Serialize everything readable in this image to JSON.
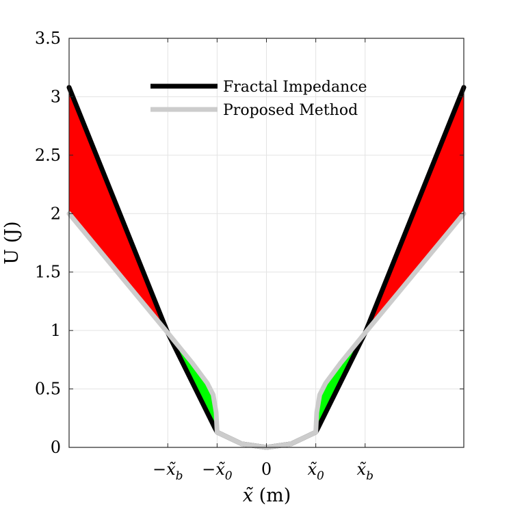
{
  "chart_data": {
    "type": "area",
    "xlabel": {
      "var": "x̃",
      "unit": " (m)"
    },
    "ylabel": "U (J)",
    "xlim": [
      -4,
      4
    ],
    "ylim": [
      0,
      3.5
    ],
    "grid": true,
    "legend_position": "top-center",
    "y_ticks": [
      {
        "value": 0,
        "label": "0"
      },
      {
        "value": 0.5,
        "label": "0.5"
      },
      {
        "value": 1,
        "label": "1"
      },
      {
        "value": 1.5,
        "label": "1.5"
      },
      {
        "value": 2,
        "label": "2"
      },
      {
        "value": 2.5,
        "label": "2.5"
      },
      {
        "value": 3,
        "label": "3"
      },
      {
        "value": 3.5,
        "label": "3.5"
      }
    ],
    "x_ticks": [
      {
        "value": -2,
        "pre": "−",
        "var": "x̃",
        "sub": "b"
      },
      {
        "value": -1,
        "pre": "−",
        "var": "x̃",
        "sub": "0"
      },
      {
        "value": 0,
        "pre": "",
        "var": "0",
        "sub": ""
      },
      {
        "value": 1,
        "pre": "",
        "var": "x̃",
        "sub": "0"
      },
      {
        "value": 2,
        "pre": "",
        "var": "x̃",
        "sub": "b"
      }
    ],
    "series": [
      {
        "name": "Fractal Impedance",
        "color": "#000000",
        "x": [
          -4,
          -2,
          -1.05,
          -1.0,
          -0.5,
          0,
          0.5,
          1.0,
          1.05,
          2,
          4
        ],
        "y": [
          3.08,
          0.98,
          0.17,
          0.13,
          0.03,
          0.0,
          0.03,
          0.13,
          0.17,
          0.98,
          3.08
        ]
      },
      {
        "name": "Proposed Method",
        "color": "#cccccc",
        "x": [
          -4,
          -2,
          -1.5,
          -1.2,
          -1.08,
          -1.02,
          -1.0,
          -0.5,
          0,
          0.5,
          1.0,
          1.02,
          1.08,
          1.2,
          1.5,
          2,
          4
        ],
        "y": [
          2.0,
          0.98,
          0.72,
          0.55,
          0.45,
          0.3,
          0.13,
          0.03,
          0.0,
          0.03,
          0.13,
          0.3,
          0.45,
          0.55,
          0.72,
          0.98,
          2.0
        ]
      }
    ],
    "shaded_regions": [
      {
        "side": "outer-left",
        "color": "#ff0000",
        "between": [
          "Fractal Impedance",
          "Proposed Method"
        ],
        "x_range": [
          -4,
          -2
        ]
      },
      {
        "side": "inner-left",
        "color": "#00ff00",
        "between": [
          "Fractal Impedance",
          "Proposed Method"
        ],
        "x_range": [
          -2,
          -1
        ]
      },
      {
        "side": "inner-right",
        "color": "#00ff00",
        "between": [
          "Fractal Impedance",
          "Proposed Method"
        ],
        "x_range": [
          1,
          2
        ]
      },
      {
        "side": "outer-right",
        "color": "#ff0000",
        "between": [
          "Fractal Impedance",
          "Proposed Method"
        ],
        "x_range": [
          2,
          4
        ]
      }
    ]
  }
}
